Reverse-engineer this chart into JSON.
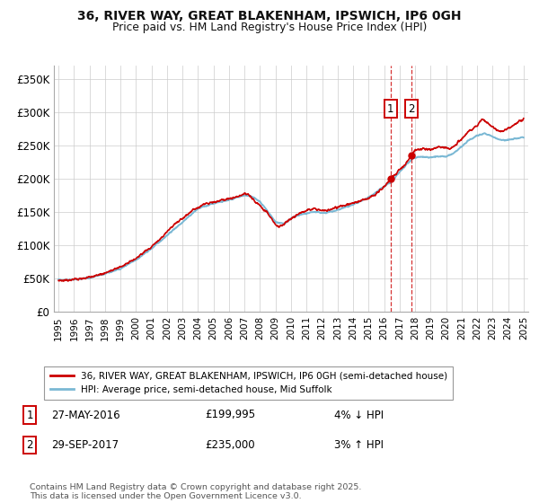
{
  "title_line1": "36, RIVER WAY, GREAT BLAKENHAM, IPSWICH, IP6 0GH",
  "title_line2": "Price paid vs. HM Land Registry's House Price Index (HPI)",
  "ylabel_ticks": [
    "£0",
    "£50K",
    "£100K",
    "£150K",
    "£200K",
    "£250K",
    "£300K",
    "£350K"
  ],
  "ytick_values": [
    0,
    50000,
    100000,
    150000,
    200000,
    250000,
    300000,
    350000
  ],
  "ylim": [
    0,
    370000
  ],
  "xlim_start": 1994.7,
  "xlim_end": 2025.3,
  "xticks": [
    1995,
    1996,
    1997,
    1998,
    1999,
    2000,
    2001,
    2002,
    2003,
    2004,
    2005,
    2006,
    2007,
    2008,
    2009,
    2010,
    2011,
    2012,
    2013,
    2014,
    2015,
    2016,
    2017,
    2018,
    2019,
    2020,
    2021,
    2022,
    2023,
    2024,
    2025
  ],
  "hpi_color": "#7ab8d4",
  "price_color": "#cc0000",
  "dashed_color": "#cc0000",
  "background_color": "#ffffff",
  "grid_color": "#cccccc",
  "legend1_label": "36, RIVER WAY, GREAT BLAKENHAM, IPSWICH, IP6 0GH (semi-detached house)",
  "legend2_label": "HPI: Average price, semi-detached house, Mid Suffolk",
  "sale1_date": 2016.42,
  "sale1_price": 199995,
  "sale2_date": 2017.75,
  "sale2_price": 235000,
  "footer": "Contains HM Land Registry data © Crown copyright and database right 2025.\nThis data is licensed under the Open Government Licence v3.0."
}
